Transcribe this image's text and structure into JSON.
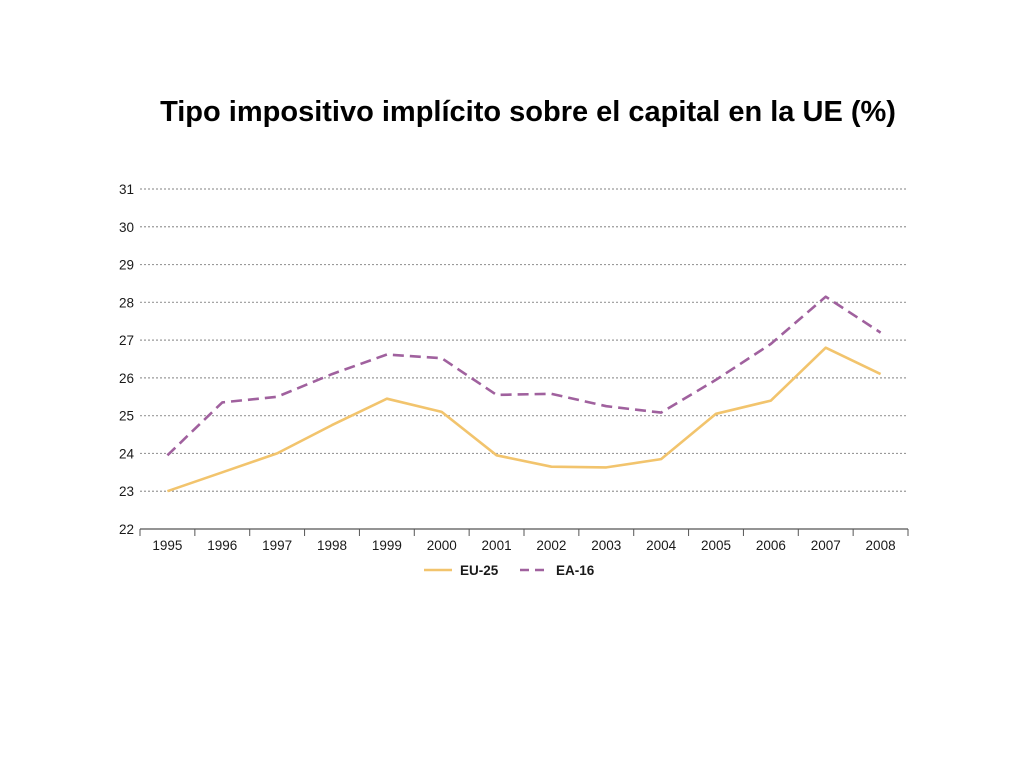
{
  "slide": {
    "title": "Tipo impositivo implícito sobre el capital en la UE (%)"
  },
  "chart_data": {
    "type": "line",
    "title": "Tipo impositivo implícito sobre el capital en la UE (%)",
    "xlabel": "",
    "ylabel": "",
    "categories": [
      "1995",
      "1996",
      "1997",
      "1998",
      "1999",
      "2000",
      "2001",
      "2002",
      "2003",
      "2004",
      "2005",
      "2006",
      "2007",
      "2008"
    ],
    "ylim": [
      22,
      31
    ],
    "yticks": [
      22,
      23,
      24,
      25,
      26,
      27,
      28,
      29,
      30,
      31
    ],
    "grid": "horizontal-dotted",
    "legend_position": "bottom",
    "series": [
      {
        "name": "EU-25",
        "color": "#f2c46d",
        "dash": "solid",
        "values": [
          23.0,
          23.5,
          24.0,
          24.75,
          25.45,
          25.1,
          23.95,
          23.65,
          23.63,
          23.85,
          25.05,
          25.4,
          26.8,
          26.1
        ]
      },
      {
        "name": "EA-16",
        "color": "#a0619e",
        "dash": "dashed",
        "values": [
          23.95,
          25.35,
          25.5,
          26.1,
          26.62,
          26.52,
          25.55,
          25.58,
          25.25,
          25.08,
          25.95,
          26.9,
          28.15,
          27.2
        ]
      }
    ]
  }
}
